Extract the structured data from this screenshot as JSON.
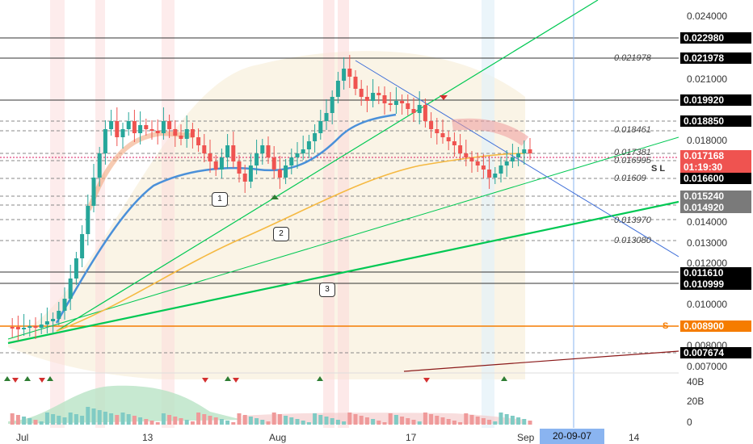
{
  "price_axis": {
    "ticks": [
      "0.024000",
      "0.021000",
      "0.018000",
      "0.014000",
      "0.013000",
      "0.012000",
      "0.010000",
      "0.008000",
      "0.007000"
    ],
    "badges": [
      {
        "label": "0.022980",
        "bg": "#000000"
      },
      {
        "label": "0.021978",
        "bg": "#000000"
      },
      {
        "label": "0.019920",
        "bg": "#000000"
      },
      {
        "label": "0.018850",
        "bg": "#000000"
      },
      {
        "label": "0.017168",
        "bg": "#ef5350"
      },
      {
        "label": "01:19:30",
        "bg": "#ef5350"
      },
      {
        "label": "0.016600",
        "bg": "#000000"
      },
      {
        "label": "0.015240",
        "bg": "#7a7a7a"
      },
      {
        "label": "0.014920",
        "bg": "#7a7a7a"
      },
      {
        "label": "0.011610",
        "bg": "#000000"
      },
      {
        "label": "0.010999",
        "bg": "#000000"
      },
      {
        "label": "0.008900",
        "bg": "#f57c00"
      },
      {
        "label": "0.007674",
        "bg": "#000000"
      }
    ]
  },
  "level_labels": [
    "0.021978",
    "0.018461",
    "0.017381",
    "0.016995",
    "0.01609",
    "0.013970",
    "0.013080"
  ],
  "markers": {
    "sl": "S L",
    "s": "S"
  },
  "callouts": [
    "1",
    "2",
    "3"
  ],
  "volume_axis": [
    "40B",
    "20B",
    "0"
  ],
  "time_axis": {
    "labels": [
      "Jul",
      "13",
      "Aug",
      "17",
      "Sep",
      "14"
    ],
    "cursor": "20-09-07"
  },
  "colors": {
    "up": "#26a69a",
    "down": "#ef5350",
    "trend": "#00c853",
    "ema": "#4a90d9",
    "ma": "#f5b942",
    "support": "#f57c00"
  }
}
